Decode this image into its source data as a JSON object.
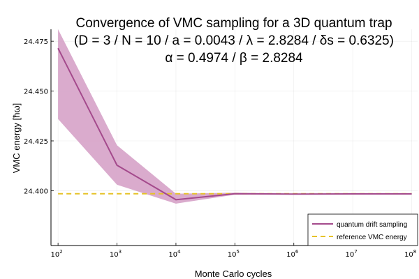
{
  "chart_data": {
    "type": "line",
    "title_lines": [
      "Convergence of VMC sampling for a 3D quantum trap",
      "(D = 3 / N = 10 / a = 0.0043 / λ = 2.8284 / δs = 0.6325)",
      "α = 0.4974 / β = 2.8284"
    ],
    "xlabel": "Monte Carlo cycles",
    "ylabel": "VMC energy [ħω]",
    "xscale": "log10",
    "xlim_log10": [
      1.88,
      8.1
    ],
    "ylim": [
      24.3725,
      24.481
    ],
    "x_ticks": [
      {
        "base": "10",
        "exp": "2",
        "value": 100
      },
      {
        "base": "10",
        "exp": "3",
        "value": 1000
      },
      {
        "base": "10",
        "exp": "4",
        "value": 10000
      },
      {
        "base": "10",
        "exp": "5",
        "value": 100000
      },
      {
        "base": "10",
        "exp": "6",
        "value": 1000000
      },
      {
        "base": "10",
        "exp": "7",
        "value": 10000000
      },
      {
        "base": "10",
        "exp": "8",
        "value": 100000000
      }
    ],
    "y_ticks": [
      "24.400",
      "24.425",
      "24.450",
      "24.475"
    ],
    "y_tick_values": [
      24.4,
      24.425,
      24.45,
      24.475
    ],
    "grid": true,
    "legend_position": "bottom-right",
    "series": [
      {
        "name": "quantum drift sampling",
        "color": "#a44a8c",
        "band_color": "#d49cc4",
        "x": [
          100,
          1000,
          10000,
          100000,
          1000000,
          10000000,
          100000000
        ],
        "values": [
          24.4715,
          24.4128,
          24.3955,
          24.3985,
          24.3983,
          24.3984,
          24.3984
        ],
        "lower": [
          24.436,
          24.403,
          24.3935,
          24.398,
          24.3981,
          24.3983,
          24.3983
        ],
        "upper": [
          24.481,
          24.4228,
          24.3985,
          24.399,
          24.3985,
          24.3985,
          24.3985
        ]
      },
      {
        "name": "reference VMC energy",
        "color": "#e6c229",
        "style": "dashed",
        "x": [
          100,
          100000000
        ],
        "values": [
          24.3985,
          24.3985
        ]
      }
    ]
  }
}
